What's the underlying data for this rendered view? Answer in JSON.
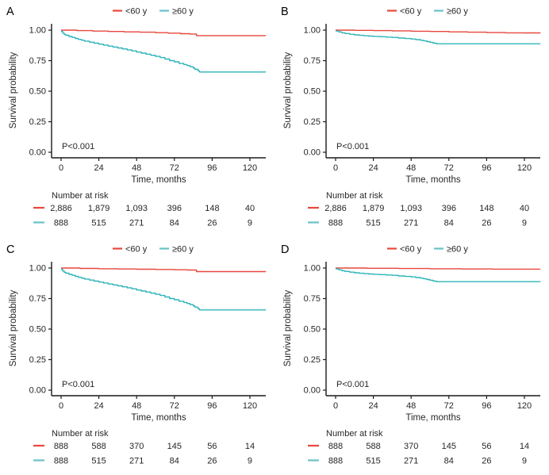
{
  "figure": {
    "background": "#ffffff",
    "text_color": "#262626",
    "axis_color": "#1a1a1a",
    "series_colors": {
      "lt60": "#e8473d",
      "ge60": "#2fb4b9"
    },
    "marker_colors": {
      "lt60": "#e8473d",
      "ge60": "#66c3c8"
    }
  },
  "chart_data": [
    {
      "type": "line",
      "panel_label": "A",
      "xlabel": "Time, months",
      "ylabel": "Survival probability",
      "p_value": "P<0.001",
      "xlim": [
        0,
        130
      ],
      "ylim": [
        0,
        1
      ],
      "grid": false,
      "legend_position": "top",
      "x_ticks": [
        0,
        24,
        48,
        72,
        96,
        120
      ],
      "y_ticks": [
        [
          "0.00",
          0
        ],
        [
          "0.25",
          0.25
        ],
        [
          "0.50",
          0.5
        ],
        [
          "0.75",
          0.75
        ],
        [
          "1.00",
          1
        ]
      ],
      "series": [
        {
          "name": "<60 y",
          "key": "lt60",
          "steps": [
            [
              0,
              1
            ],
            [
              10,
              0.996
            ],
            [
              20,
              0.992
            ],
            [
              30,
              0.989
            ],
            [
              40,
              0.986
            ],
            [
              50,
              0.983
            ],
            [
              60,
              0.979
            ],
            [
              68,
              0.975
            ],
            [
              76,
              0.971
            ],
            [
              82,
              0.968
            ],
            [
              86,
              0.955
            ],
            [
              130,
              0.954
            ]
          ]
        },
        {
          "name": "≥60 y",
          "key": "ge60",
          "steps": [
            [
              0,
              0.99
            ],
            [
              1,
              0.975
            ],
            [
              2,
              0.965
            ],
            [
              3,
              0.958
            ],
            [
              5,
              0.948
            ],
            [
              7,
              0.94
            ],
            [
              9,
              0.932
            ],
            [
              11,
              0.924
            ],
            [
              13,
              0.917
            ],
            [
              15,
              0.91
            ],
            [
              18,
              0.901
            ],
            [
              21,
              0.893
            ],
            [
              24,
              0.885
            ],
            [
              27,
              0.877
            ],
            [
              30,
              0.869
            ],
            [
              33,
              0.862
            ],
            [
              36,
              0.854
            ],
            [
              39,
              0.846
            ],
            [
              42,
              0.838
            ],
            [
              45,
              0.83
            ],
            [
              48,
              0.82
            ],
            [
              51,
              0.812
            ],
            [
              54,
              0.803
            ],
            [
              57,
              0.794
            ],
            [
              60,
              0.785
            ],
            [
              63,
              0.775
            ],
            [
              66,
              0.763
            ],
            [
              69,
              0.75
            ],
            [
              72,
              0.74
            ],
            [
              75,
              0.728
            ],
            [
              78,
              0.718
            ],
            [
              80,
              0.71
            ],
            [
              82,
              0.7
            ],
            [
              84,
              0.69
            ],
            [
              85,
              0.68
            ],
            [
              87,
              0.667
            ],
            [
              88,
              0.657
            ],
            [
              130,
              0.656
            ]
          ]
        }
      ],
      "risk_table": {
        "title": "Number at risk",
        "rows": [
          {
            "series": "<60 y",
            "key": "lt60",
            "values": [
              "2,886",
              "1,879",
              "1,093",
              "396",
              "148",
              "40"
            ]
          },
          {
            "series": "≥60 y",
            "key": "ge60",
            "values": [
              "888",
              "515",
              "271",
              "84",
              "26",
              "9"
            ]
          }
        ]
      }
    },
    {
      "type": "line",
      "panel_label": "B",
      "xlabel": "Time, months",
      "ylabel": "Survival probability",
      "p_value": "P<0.001",
      "xlim": [
        0,
        130
      ],
      "ylim": [
        0,
        1
      ],
      "grid": false,
      "legend_position": "top",
      "x_ticks": [
        0,
        24,
        48,
        72,
        96,
        120
      ],
      "y_ticks": [
        [
          "0.00",
          0
        ],
        [
          "0.25",
          0.25
        ],
        [
          "0.50",
          0.5
        ],
        [
          "0.75",
          0.75
        ],
        [
          "1.00",
          1
        ]
      ],
      "series": [
        {
          "name": "<60 y",
          "key": "lt60",
          "steps": [
            [
              0,
              1
            ],
            [
              12,
              0.998
            ],
            [
              24,
              0.996
            ],
            [
              36,
              0.994
            ],
            [
              48,
              0.991
            ],
            [
              60,
              0.989
            ],
            [
              72,
              0.986
            ],
            [
              84,
              0.983
            ],
            [
              96,
              0.98
            ],
            [
              108,
              0.978
            ],
            [
              120,
              0.977
            ],
            [
              130,
              0.976
            ]
          ]
        },
        {
          "name": "≥60 y",
          "key": "ge60",
          "steps": [
            [
              0,
              0.993
            ],
            [
              2,
              0.985
            ],
            [
              4,
              0.978
            ],
            [
              6,
              0.972
            ],
            [
              9,
              0.966
            ],
            [
              12,
              0.961
            ],
            [
              15,
              0.957
            ],
            [
              18,
              0.954
            ],
            [
              21,
              0.951
            ],
            [
              24,
              0.949
            ],
            [
              28,
              0.946
            ],
            [
              32,
              0.943
            ],
            [
              36,
              0.94
            ],
            [
              40,
              0.935
            ],
            [
              44,
              0.931
            ],
            [
              48,
              0.927
            ],
            [
              51,
              0.922
            ],
            [
              54,
              0.917
            ],
            [
              56,
              0.912
            ],
            [
              58,
              0.906
            ],
            [
              60,
              0.9
            ],
            [
              62,
              0.893
            ],
            [
              64,
              0.888
            ],
            [
              130,
              0.887
            ]
          ]
        }
      ],
      "risk_table": {
        "title": "Number at risk",
        "rows": [
          {
            "series": "<60 y",
            "key": "lt60",
            "values": [
              "2,886",
              "1,879",
              "1,093",
              "396",
              "148",
              "40"
            ]
          },
          {
            "series": "≥60 y",
            "key": "ge60",
            "values": [
              "888",
              "515",
              "271",
              "84",
              "26",
              "9"
            ]
          }
        ]
      }
    },
    {
      "type": "line",
      "panel_label": "C",
      "xlabel": "Time, months",
      "ylabel": "Survival probability",
      "p_value": "P<0.001",
      "xlim": [
        0,
        130
      ],
      "ylim": [
        0,
        1
      ],
      "grid": false,
      "legend_position": "top",
      "x_ticks": [
        0,
        24,
        48,
        72,
        96,
        120
      ],
      "y_ticks": [
        [
          "0.00",
          0
        ],
        [
          "0.25",
          0.25
        ],
        [
          "0.50",
          0.5
        ],
        [
          "0.75",
          0.75
        ],
        [
          "1.00",
          1
        ]
      ],
      "series": [
        {
          "name": "<60 y",
          "key": "lt60",
          "steps": [
            [
              0,
              1
            ],
            [
              12,
              0.997
            ],
            [
              24,
              0.994
            ],
            [
              36,
              0.992
            ],
            [
              48,
              0.99
            ],
            [
              60,
              0.988
            ],
            [
              72,
              0.986
            ],
            [
              80,
              0.984
            ],
            [
              86,
              0.971
            ],
            [
              130,
              0.97
            ]
          ]
        },
        {
          "name": "≥60 y",
          "key": "ge60",
          "steps": [
            [
              0,
              0.99
            ],
            [
              1,
              0.975
            ],
            [
              2,
              0.965
            ],
            [
              3,
              0.958
            ],
            [
              5,
              0.948
            ],
            [
              7,
              0.94
            ],
            [
              9,
              0.932
            ],
            [
              11,
              0.924
            ],
            [
              13,
              0.917
            ],
            [
              15,
              0.91
            ],
            [
              18,
              0.901
            ],
            [
              21,
              0.893
            ],
            [
              24,
              0.885
            ],
            [
              27,
              0.877
            ],
            [
              30,
              0.869
            ],
            [
              33,
              0.862
            ],
            [
              36,
              0.854
            ],
            [
              39,
              0.846
            ],
            [
              42,
              0.838
            ],
            [
              45,
              0.83
            ],
            [
              48,
              0.82
            ],
            [
              51,
              0.812
            ],
            [
              54,
              0.803
            ],
            [
              57,
              0.794
            ],
            [
              60,
              0.785
            ],
            [
              63,
              0.775
            ],
            [
              66,
              0.763
            ],
            [
              69,
              0.75
            ],
            [
              72,
              0.74
            ],
            [
              75,
              0.728
            ],
            [
              78,
              0.718
            ],
            [
              80,
              0.71
            ],
            [
              82,
              0.7
            ],
            [
              84,
              0.69
            ],
            [
              85,
              0.68
            ],
            [
              87,
              0.667
            ],
            [
              88,
              0.657
            ],
            [
              130,
              0.656
            ]
          ]
        }
      ],
      "risk_table": {
        "title": "Number at risk",
        "rows": [
          {
            "series": "<60 y",
            "key": "lt60",
            "values": [
              "888",
              "588",
              "370",
              "145",
              "56",
              "14"
            ]
          },
          {
            "series": "≥60 y",
            "key": "ge60",
            "values": [
              "888",
              "515",
              "271",
              "84",
              "26",
              "9"
            ]
          }
        ]
      }
    },
    {
      "type": "line",
      "panel_label": "D",
      "xlabel": "Time, months",
      "ylabel": "Survival probability",
      "p_value": "P<0.001",
      "xlim": [
        0,
        130
      ],
      "ylim": [
        0,
        1
      ],
      "grid": false,
      "legend_position": "top",
      "x_ticks": [
        0,
        24,
        48,
        72,
        96,
        120
      ],
      "y_ticks": [
        [
          "0.00",
          0
        ],
        [
          "0.25",
          0.25
        ],
        [
          "0.50",
          0.5
        ],
        [
          "0.75",
          0.75
        ],
        [
          "1.00",
          1
        ]
      ],
      "series": [
        {
          "name": "<60 y",
          "key": "lt60",
          "steps": [
            [
              0,
              1
            ],
            [
              20,
              0.998
            ],
            [
              40,
              0.996
            ],
            [
              60,
              0.994
            ],
            [
              80,
              0.992
            ],
            [
              100,
              0.991
            ],
            [
              130,
              0.99
            ]
          ]
        },
        {
          "name": "≥60 y",
          "key": "ge60",
          "steps": [
            [
              0,
              0.993
            ],
            [
              2,
              0.985
            ],
            [
              4,
              0.978
            ],
            [
              6,
              0.972
            ],
            [
              9,
              0.966
            ],
            [
              12,
              0.961
            ],
            [
              15,
              0.957
            ],
            [
              18,
              0.954
            ],
            [
              21,
              0.951
            ],
            [
              24,
              0.949
            ],
            [
              28,
              0.946
            ],
            [
              32,
              0.943
            ],
            [
              36,
              0.94
            ],
            [
              40,
              0.935
            ],
            [
              44,
              0.931
            ],
            [
              48,
              0.927
            ],
            [
              51,
              0.922
            ],
            [
              54,
              0.917
            ],
            [
              56,
              0.912
            ],
            [
              58,
              0.906
            ],
            [
              60,
              0.9
            ],
            [
              62,
              0.893
            ],
            [
              64,
              0.888
            ],
            [
              130,
              0.886
            ]
          ]
        }
      ],
      "risk_table": {
        "title": "Number at risk",
        "rows": [
          {
            "series": "<60 y",
            "key": "lt60",
            "values": [
              "888",
              "588",
              "370",
              "145",
              "56",
              "14"
            ]
          },
          {
            "series": "≥60 y",
            "key": "ge60",
            "values": [
              "888",
              "515",
              "271",
              "84",
              "26",
              "9"
            ]
          }
        ]
      }
    }
  ]
}
